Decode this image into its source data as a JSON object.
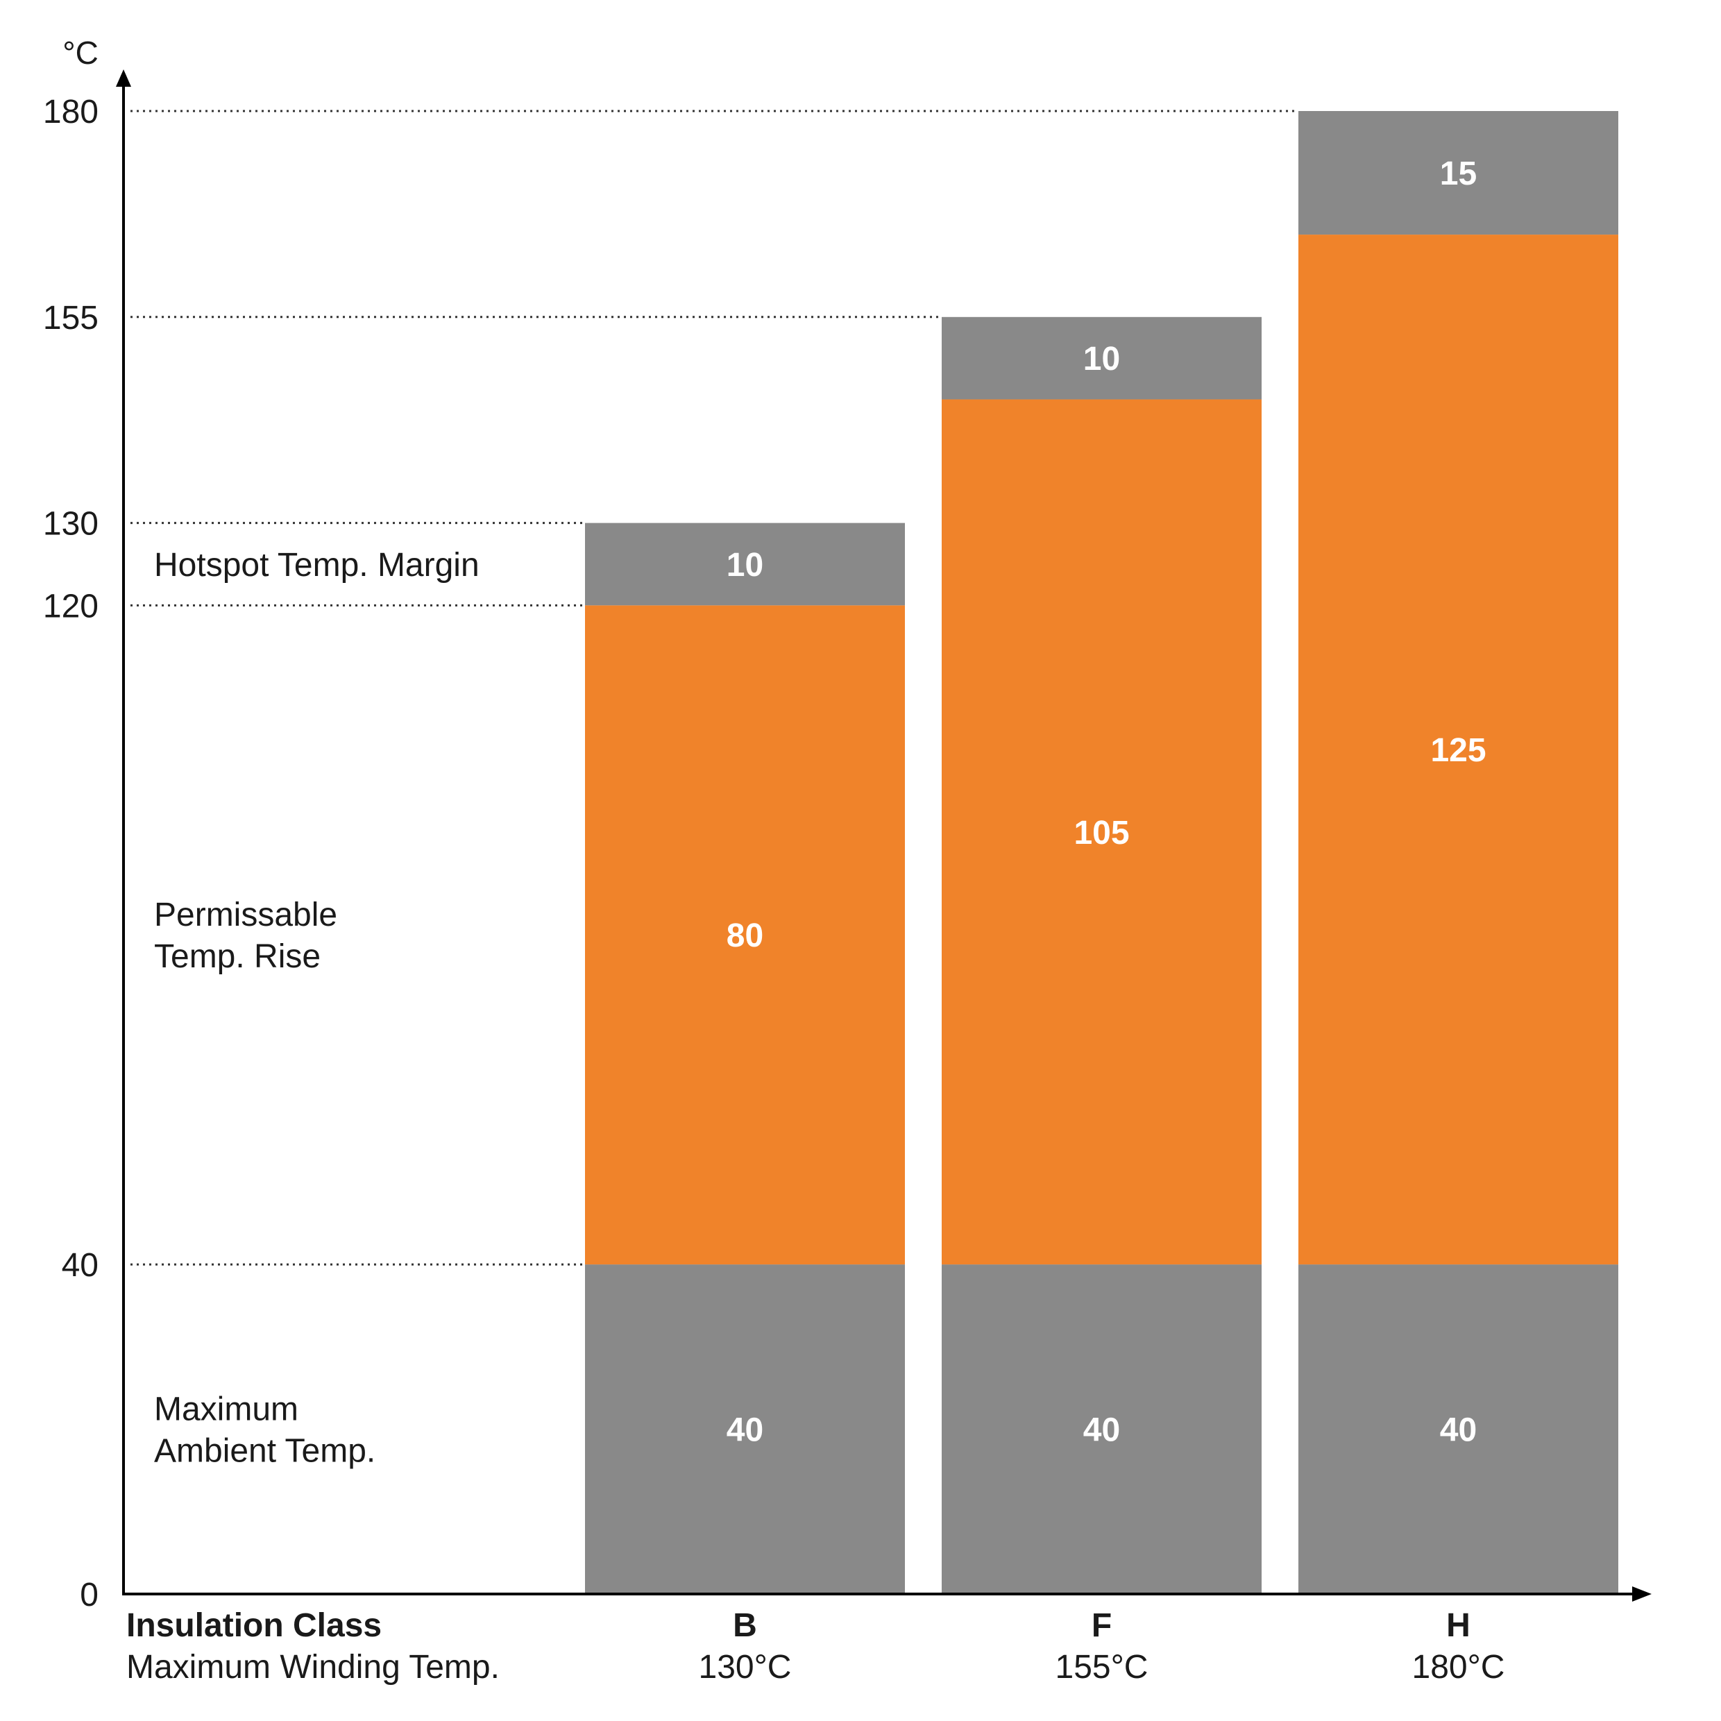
{
  "chart_data": {
    "type": "bar",
    "stacked": true,
    "unit": "°C",
    "categories": [
      "B",
      "F",
      "H"
    ],
    "category_sublabels": [
      "130°C",
      "155°C",
      "180°C"
    ],
    "x_row_labels": {
      "bold": "Insulation Class",
      "regular": "Maximum Winding Temp."
    },
    "ylim": [
      0,
      180
    ],
    "y_ticks": [
      0,
      40,
      120,
      130,
      155,
      180
    ],
    "reference_lines": [
      40,
      120,
      130,
      155,
      180
    ],
    "grid": false,
    "series": [
      {
        "name": "Maximum Ambient Temp.",
        "values": [
          40,
          40,
          40
        ],
        "color": "#898989"
      },
      {
        "name": "Permissable Temp. Rise",
        "values": [
          80,
          105,
          125
        ],
        "color": "#f0832a"
      },
      {
        "name": "Hotspot Temp. Margin",
        "values": [
          10,
          10,
          15
        ],
        "color": "#898989"
      }
    ],
    "series_label_lines": [
      [
        "Maximum",
        "Ambient Temp."
      ],
      [
        "Permissable",
        "Temp. Rise"
      ],
      [
        "Hotspot Temp. Margin"
      ]
    ]
  }
}
